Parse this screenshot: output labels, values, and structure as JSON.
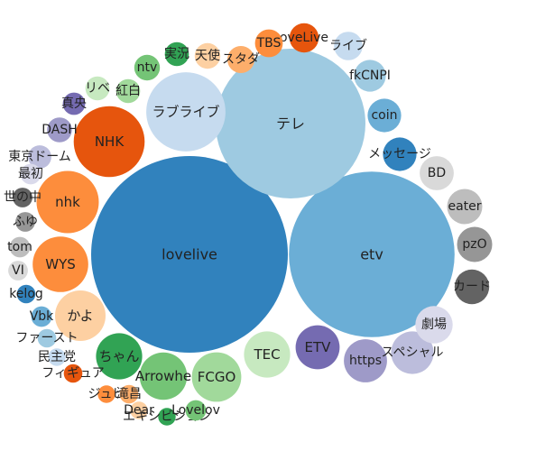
{
  "chart_data": {
    "type": "bubble",
    "title": "",
    "palette": {
      "blue": [
        "#3182bd",
        "#6baed6",
        "#9ecae1",
        "#c6dbef"
      ],
      "orange": [
        "#e6550d",
        "#fd8d3c",
        "#fdae6b",
        "#fdd0a2"
      ],
      "green": [
        "#31a354",
        "#74c476",
        "#a1d99b",
        "#c7e9c0"
      ],
      "purple": [
        "#756bb1",
        "#9e9ac8",
        "#bcbddc",
        "#dadaeb"
      ],
      "gray": [
        "#636363",
        "#969696",
        "#bdbdbd",
        "#d9d9d9"
      ]
    },
    "bubbles": [
      {
        "label": "lovelive",
        "value": 100,
        "color": "#3182bd"
      },
      {
        "label": "etv",
        "value": 71,
        "color": "#6baed6"
      },
      {
        "label": "テレ",
        "value": 58,
        "color": "#9ecae1"
      },
      {
        "label": "ラブライブ",
        "value": 16.2,
        "color": "#c6dbef"
      },
      {
        "label": "NHK",
        "value": 13,
        "color": "#e6550d"
      },
      {
        "label": "nhk",
        "value": 10,
        "color": "#fd8d3c"
      },
      {
        "label": "WYS",
        "value": 8,
        "color": "#fd8d3c"
      },
      {
        "label": "かよ",
        "value": 6.6,
        "color": "#fdd0a2"
      },
      {
        "label": "ちゃん",
        "value": 5.5,
        "color": "#31a354"
      },
      {
        "label": "Arrowhe",
        "value": 5.8,
        "color": "#74c476"
      },
      {
        "label": "FCGO",
        "value": 6.3,
        "color": "#a1d99b"
      },
      {
        "label": "TEC",
        "value": 5.5,
        "color": "#c7e9c0"
      },
      {
        "label": "ETV",
        "value": 5,
        "color": "#756bb1"
      },
      {
        "label": "https",
        "value": 4.8,
        "color": "#9e9ac8"
      },
      {
        "label": "スペシャル",
        "value": 4.7,
        "color": "#bcbddc"
      },
      {
        "label": "劇場",
        "value": 3.6,
        "color": "#dadaeb"
      },
      {
        "label": "カード",
        "value": 3.1,
        "color": "#636363"
      },
      {
        "label": "pzO",
        "value": 3.2,
        "color": "#969696"
      },
      {
        "label": "eater",
        "value": 3.2,
        "color": "#bdbdbd"
      },
      {
        "label": "BD",
        "value": 3,
        "color": "#d9d9d9"
      },
      {
        "label": "メッセージ",
        "value": 2.9,
        "color": "#3182bd"
      },
      {
        "label": "coin",
        "value": 2.9,
        "color": "#6baed6"
      },
      {
        "label": "fkCNPI",
        "value": 2.6,
        "color": "#9ecae1"
      },
      {
        "label": "ライブ",
        "value": 2.1,
        "color": "#c6dbef"
      },
      {
        "label": "oveLive",
        "value": 2.2,
        "color": "#e6550d"
      },
      {
        "label": "TBS",
        "value": 2,
        "color": "#fd8d3c"
      },
      {
        "label": "スタダ",
        "value": 1.9,
        "color": "#fdae6b"
      },
      {
        "label": "天使",
        "value": 1.7,
        "color": "#fdd0a2"
      },
      {
        "label": "実況",
        "value": 1.5,
        "color": "#31a354"
      },
      {
        "label": "ntv",
        "value": 1.7,
        "color": "#74c476"
      },
      {
        "label": "紅白",
        "value": 1.5,
        "color": "#a1d99b"
      },
      {
        "label": "リベ",
        "value": 1.5,
        "color": "#c7e9c0"
      },
      {
        "label": "真央",
        "value": 1.3,
        "color": "#756bb1"
      },
      {
        "label": "DASH",
        "value": 1.6,
        "color": "#9e9ac8"
      },
      {
        "label": "東京ドーム",
        "value": 1.4,
        "color": "#bcbddc"
      },
      {
        "label": "最初",
        "value": 1.1,
        "color": "#dadaeb"
      },
      {
        "label": "世の中",
        "value": 1,
        "color": "#636363"
      },
      {
        "label": "ふゆ",
        "value": 1,
        "color": "#969696"
      },
      {
        "label": "tom",
        "value": 1.1,
        "color": "#bdbdbd"
      },
      {
        "label": "VI",
        "value": 1,
        "color": "#d9d9d9"
      },
      {
        "label": "kelog",
        "value": 0.9,
        "color": "#3182bd"
      },
      {
        "label": "Vbk",
        "value": 1.1,
        "color": "#6baed6"
      },
      {
        "label": "ファースト",
        "value": 0.9,
        "color": "#9ecae1"
      },
      {
        "label": "民主党",
        "value": 0.8,
        "color": "#c6dbef"
      },
      {
        "label": "フィギュア",
        "value": 0.9,
        "color": "#e6550d"
      },
      {
        "label": "ジュピ",
        "value": 0.8,
        "color": "#fd8d3c"
      },
      {
        "label": "滝昌",
        "value": 0.9,
        "color": "#fdae6b"
      },
      {
        "label": "Dear",
        "value": 0.8,
        "color": "#fdd0a2"
      },
      {
        "label": "エキシビション",
        "value": 0.8,
        "color": "#31a354"
      },
      {
        "label": "Lovelov",
        "value": 1.1,
        "color": "#74c476"
      }
    ]
  }
}
